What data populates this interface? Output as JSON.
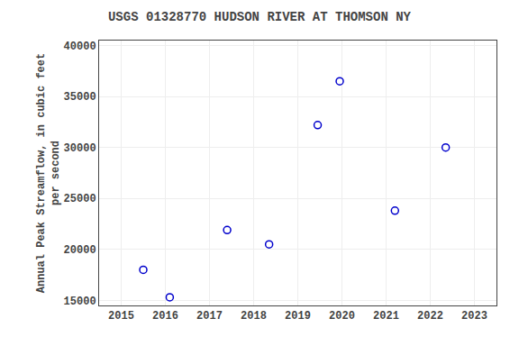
{
  "chart_data": {
    "type": "scatter",
    "title": "USGS 01328770 HUDSON RIVER AT THOMSON NY",
    "ylabel": "Annual Peak Streamflow, in cubic feet\nper second",
    "x": [
      2015.5,
      2016.1,
      2017.4,
      2018.35,
      2019.45,
      2019.95,
      2021.2,
      2022.35
    ],
    "values": [
      18000,
      15300,
      21900,
      20500,
      32200,
      36500,
      23800,
      30000
    ],
    "color": "#0000cc",
    "marker": "open circle",
    "xlim": [
      2014.5,
      2023.5
    ],
    "ylim": [
      14500,
      40500
    ],
    "xticks": [
      2015,
      2016,
      2017,
      2018,
      2019,
      2020,
      2021,
      2022,
      2023
    ],
    "yticks": [
      15000,
      20000,
      25000,
      30000,
      35000,
      40000
    ],
    "grid": true
  }
}
